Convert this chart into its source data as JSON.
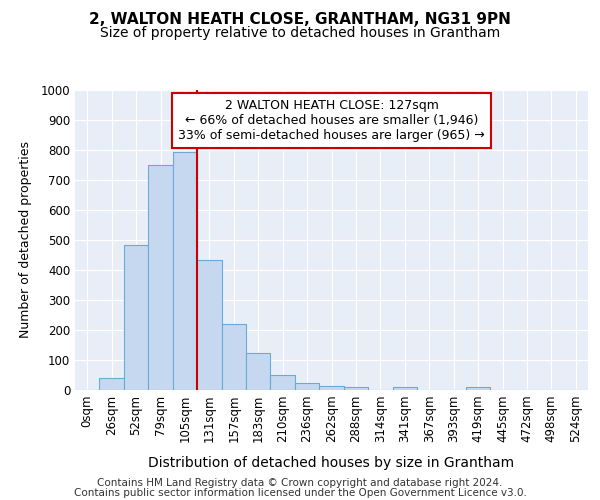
{
  "title1": "2, WALTON HEATH CLOSE, GRANTHAM, NG31 9PN",
  "title2": "Size of property relative to detached houses in Grantham",
  "xlabel": "Distribution of detached houses by size in Grantham",
  "ylabel": "Number of detached properties",
  "bar_labels": [
    "0sqm",
    "26sqm",
    "52sqm",
    "79sqm",
    "105sqm",
    "131sqm",
    "157sqm",
    "183sqm",
    "210sqm",
    "236sqm",
    "262sqm",
    "288sqm",
    "314sqm",
    "341sqm",
    "367sqm",
    "393sqm",
    "419sqm",
    "445sqm",
    "472sqm",
    "498sqm",
    "524sqm"
  ],
  "bar_values": [
    0,
    40,
    485,
    750,
    795,
    435,
    220,
    125,
    50,
    25,
    15,
    10,
    0,
    10,
    0,
    0,
    10,
    0,
    0,
    0,
    0
  ],
  "bar_color": "#c5d8f0",
  "bar_edge_color": "#6aaad4",
  "background_color": "#e8eef8",
  "grid_color": "#ffffff",
  "vline_x_index": 5,
  "vline_color": "#cc0000",
  "annotation_line1": "2 WALTON HEATH CLOSE: 127sqm",
  "annotation_line2": "← 66% of detached houses are smaller (1,946)",
  "annotation_line3": "33% of semi-detached houses are larger (965) →",
  "annotation_box_color": "#ffffff",
  "annotation_box_edge": "#cc0000",
  "ylim": [
    0,
    1000
  ],
  "yticks": [
    0,
    100,
    200,
    300,
    400,
    500,
    600,
    700,
    800,
    900,
    1000
  ],
  "footer_line1": "Contains HM Land Registry data © Crown copyright and database right 2024.",
  "footer_line2": "Contains public sector information licensed under the Open Government Licence v3.0.",
  "title1_fontsize": 11,
  "title2_fontsize": 10,
  "tick_fontsize": 8.5,
  "ylabel_fontsize": 9,
  "xlabel_fontsize": 10,
  "annotation_fontsize": 9,
  "footer_fontsize": 7.5,
  "fig_background": "#ffffff"
}
